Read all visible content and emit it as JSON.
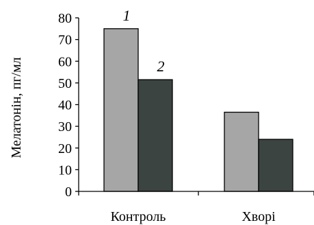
{
  "chart_data": {
    "type": "bar",
    "ylabel": "Мелатонін, пг/мл",
    "ylim": [
      0,
      80
    ],
    "yticks": [
      0,
      10,
      20,
      30,
      40,
      50,
      60,
      70,
      80
    ],
    "grid": false,
    "categories": [
      "Контроль",
      "Хворі"
    ],
    "series": [
      {
        "name": "1",
        "values": [
          75,
          36.5
        ],
        "color": "#a6a6a6"
      },
      {
        "name": "2",
        "values": [
          51.5,
          24
        ],
        "color": "#3b4440"
      }
    ]
  }
}
